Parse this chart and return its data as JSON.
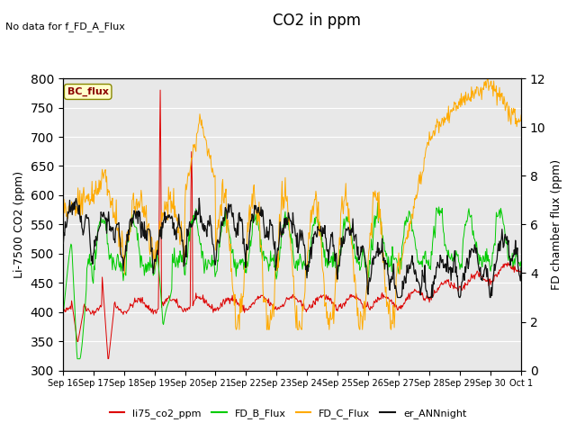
{
  "title": "CO2 in ppm",
  "no_data_text": "No data for f_FD_A_Flux",
  "bc_flux_label": "BC_flux",
  "ylabel_left": "Li-7500 CO2 (ppm)",
  "ylabel_right": "FD chamber flux (ppm)",
  "ylim_left": [
    300,
    800
  ],
  "ylim_right": [
    0,
    12
  ],
  "yticks_left": [
    300,
    350,
    400,
    450,
    500,
    550,
    600,
    650,
    700,
    750,
    800
  ],
  "yticks_right": [
    0,
    2,
    4,
    6,
    8,
    10,
    12
  ],
  "x_tick_labels": [
    "Sep 16",
    "Sep 17",
    "Sep 18",
    "Sep 19",
    "Sep 20",
    "Sep 21",
    "Sep 22",
    "Sep 23",
    "Sep 24",
    "Sep 25",
    "Sep 26",
    "Sep 27",
    "Sep 28",
    "Sep 29",
    "Sep 30",
    "Oct 1"
  ],
  "n_days": 15,
  "pts_per_day": 48,
  "background_color": "#e8e8e8",
  "line_colors": {
    "li75": "#dd0000",
    "fd_b": "#00cc00",
    "fd_c": "#ffaa00",
    "er_ann": "#111111"
  },
  "legend_entries": [
    "li75_co2_ppm",
    "FD_B_Flux",
    "FD_C_Flux",
    "er_ANNnight"
  ]
}
